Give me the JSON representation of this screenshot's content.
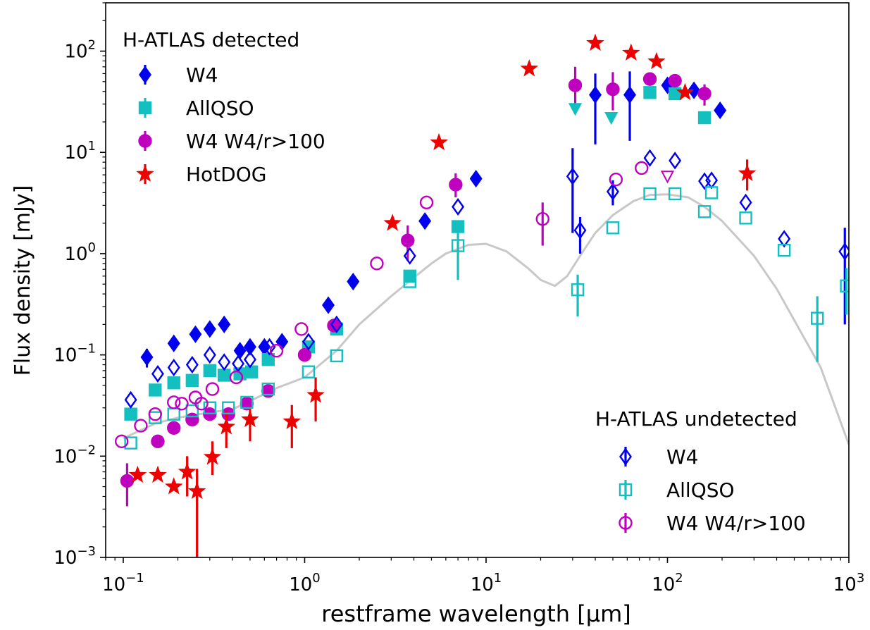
{
  "chart_data": {
    "type": "scatter",
    "xlabel": "restframe wavelength [μm]",
    "ylabel": "Flux density [mJy]",
    "xscale": "log",
    "yscale": "log",
    "xlim": [
      0.08,
      1000
    ],
    "ylim": [
      0.001,
      300
    ],
    "x_ticks": [
      {
        "value": 0.1,
        "base": "10",
        "exp": "−1"
      },
      {
        "value": 1,
        "base": "10",
        "exp": "0"
      },
      {
        "value": 10,
        "base": "10",
        "exp": "1"
      },
      {
        "value": 100,
        "base": "10",
        "exp": "2"
      },
      {
        "value": 1000,
        "base": "10",
        "exp": "3"
      }
    ],
    "y_ticks": [
      {
        "value": 0.001,
        "base": "10",
        "exp": "−3"
      },
      {
        "value": 0.01,
        "base": "10",
        "exp": "−2"
      },
      {
        "value": 0.1,
        "base": "10",
        "exp": "−1"
      },
      {
        "value": 1,
        "base": "10",
        "exp": "0"
      },
      {
        "value": 10,
        "base": "10",
        "exp": "1"
      },
      {
        "value": 100,
        "base": "10",
        "exp": "2"
      }
    ],
    "grid": false,
    "legends": [
      {
        "title": "H-ATLAS detected",
        "placement": "top-left",
        "entries": [
          {
            "label": "W4",
            "marker": "diamond",
            "color": "#0000ee",
            "filled": true
          },
          {
            "label": "AllQSO",
            "marker": "square",
            "color": "#14bfbf",
            "filled": true
          },
          {
            "label": "W4 W4/r>100",
            "marker": "circle",
            "color": "#bf00bf",
            "filled": true
          },
          {
            "label": "HotDOG",
            "marker": "star",
            "color": "#ee0000",
            "filled": true
          }
        ]
      },
      {
        "title": "H-ATLAS undetected",
        "placement": "bottom-right",
        "entries": [
          {
            "label": "W4",
            "marker": "diamond",
            "color": "#0000ee",
            "filled": false
          },
          {
            "label": "AllQSO",
            "marker": "square",
            "color": "#14bfbf",
            "filled": false
          },
          {
            "label": "W4 W4/r>100",
            "marker": "circle",
            "color": "#bf00bf",
            "filled": false
          }
        ]
      }
    ],
    "template_curve": {
      "color": "#c8c8c8",
      "points": [
        [
          0.1,
          0.015
        ],
        [
          0.15,
          0.021
        ],
        [
          0.2,
          0.024
        ],
        [
          0.3,
          0.027
        ],
        [
          0.4,
          0.029
        ],
        [
          0.5,
          0.035
        ],
        [
          0.7,
          0.047
        ],
        [
          1.0,
          0.06
        ],
        [
          1.5,
          0.11
        ],
        [
          2,
          0.2
        ],
        [
          3,
          0.38
        ],
        [
          4,
          0.58
        ],
        [
          5,
          0.8
        ],
        [
          6,
          1.0
        ],
        [
          8,
          1.22
        ],
        [
          10,
          1.25
        ],
        [
          13,
          1.05
        ],
        [
          17,
          0.72
        ],
        [
          20,
          0.55
        ],
        [
          24,
          0.48
        ],
        [
          28,
          0.6
        ],
        [
          33,
          0.95
        ],
        [
          40,
          1.6
        ],
        [
          50,
          2.4
        ],
        [
          65,
          3.3
        ],
        [
          80,
          3.8
        ],
        [
          100,
          3.85
        ],
        [
          130,
          3.6
        ],
        [
          160,
          2.9
        ],
        [
          200,
          2.1
        ],
        [
          300,
          0.95
        ],
        [
          400,
          0.45
        ],
        [
          500,
          0.22
        ],
        [
          700,
          0.075
        ],
        [
          1000,
          0.013
        ]
      ]
    },
    "series": [
      {
        "name": "W4",
        "group": "H-ATLAS detected",
        "marker": "diamond",
        "color": "#0000ee",
        "filled": true,
        "points": [
          {
            "x": 0.135,
            "y": 0.095,
            "err": [
              0.075,
              0.115
            ]
          },
          {
            "x": 0.19,
            "y": 0.13
          },
          {
            "x": 0.25,
            "y": 0.16
          },
          {
            "x": 0.3,
            "y": 0.18
          },
          {
            "x": 0.36,
            "y": 0.2
          },
          {
            "x": 0.44,
            "y": 0.11
          },
          {
            "x": 0.5,
            "y": 0.12
          },
          {
            "x": 0.6,
            "y": 0.12
          },
          {
            "x": 0.75,
            "y": 0.135
          },
          {
            "x": 1.35,
            "y": 0.31
          },
          {
            "x": 1.85,
            "y": 0.53
          },
          {
            "x": 4.6,
            "y": 2.1
          },
          {
            "x": 8.8,
            "y": 5.5
          },
          {
            "x": 40,
            "y": 37,
            "err": [
              12,
              60
            ]
          },
          {
            "x": 62,
            "y": 37,
            "err": [
              13,
              63
            ]
          },
          {
            "x": 100,
            "y": 46
          },
          {
            "x": 140,
            "y": 41
          },
          {
            "x": 195,
            "y": 26
          }
        ]
      },
      {
        "name": "AllQSO",
        "group": "H-ATLAS detected",
        "marker": "square",
        "color": "#14bfbf",
        "filled": true,
        "points": [
          {
            "x": 0.11,
            "y": 0.026
          },
          {
            "x": 0.15,
            "y": 0.045
          },
          {
            "x": 0.19,
            "y": 0.053
          },
          {
            "x": 0.24,
            "y": 0.056
          },
          {
            "x": 0.3,
            "y": 0.07
          },
          {
            "x": 0.36,
            "y": 0.063
          },
          {
            "x": 0.44,
            "y": 0.065
          },
          {
            "x": 0.51,
            "y": 0.068
          },
          {
            "x": 0.63,
            "y": 0.09
          },
          {
            "x": 1.05,
            "y": 0.12
          },
          {
            "x": 1.5,
            "y": 0.18
          },
          {
            "x": 3.8,
            "y": 0.6
          },
          {
            "x": 7,
            "y": 1.85
          },
          {
            "x": 80,
            "y": 39
          },
          {
            "x": 110,
            "y": 38
          },
          {
            "x": 160,
            "y": 22
          }
        ]
      },
      {
        "name": "W4 W4/r>100",
        "group": "H-ATLAS detected",
        "marker": "circle",
        "color": "#bf00bf",
        "filled": true,
        "points": [
          {
            "x": 0.105,
            "y": 0.0057,
            "err": [
              0.0032,
              0.0085
            ]
          },
          {
            "x": 0.155,
            "y": 0.014
          },
          {
            "x": 0.19,
            "y": 0.019
          },
          {
            "x": 0.24,
            "y": 0.023
          },
          {
            "x": 0.3,
            "y": 0.026
          },
          {
            "x": 0.38,
            "y": 0.026
          },
          {
            "x": 0.48,
            "y": 0.033
          },
          {
            "x": 0.63,
            "y": 0.044
          },
          {
            "x": 1.0,
            "y": 0.1
          },
          {
            "x": 1.45,
            "y": 0.195
          },
          {
            "x": 3.7,
            "y": 1.35,
            "err": [
              0.85,
              1.9
            ]
          },
          {
            "x": 6.8,
            "y": 4.8,
            "err": [
              3.6,
              6.2
            ]
          },
          {
            "x": 31,
            "y": 46,
            "err": [
              26,
              70
            ]
          },
          {
            "x": 50,
            "y": 42,
            "err": [
              26,
              62
            ]
          },
          {
            "x": 80,
            "y": 53
          },
          {
            "x": 110,
            "y": 51
          },
          {
            "x": 160,
            "y": 38,
            "err": [
              29,
              47
            ]
          }
        ]
      },
      {
        "name": "HotDOG",
        "group": "H-ATLAS detected",
        "marker": "star",
        "color": "#ee0000",
        "filled": true,
        "points": [
          {
            "x": 0.12,
            "y": 0.0065
          },
          {
            "x": 0.155,
            "y": 0.0065
          },
          {
            "x": 0.19,
            "y": 0.005
          },
          {
            "x": 0.225,
            "y": 0.007,
            "err": [
              0.004,
              0.01
            ]
          },
          {
            "x": 0.255,
            "y": 0.0045,
            "err": [
              0.001,
              0.0075
            ]
          },
          {
            "x": 0.31,
            "y": 0.0098,
            "err": [
              0.0065,
              0.014
            ]
          },
          {
            "x": 0.37,
            "y": 0.0195,
            "err": [
              0.012,
              0.028
            ]
          },
          {
            "x": 0.5,
            "y": 0.023,
            "err": [
              0.014,
              0.031
            ]
          },
          {
            "x": 0.85,
            "y": 0.022,
            "err": [
              0.012,
              0.032
            ]
          },
          {
            "x": 1.15,
            "y": 0.04,
            "err": [
              0.022,
              0.06
            ]
          },
          {
            "x": 3.05,
            "y": 2.0
          },
          {
            "x": 5.5,
            "y": 12.5
          },
          {
            "x": 17.3,
            "y": 67
          },
          {
            "x": 40,
            "y": 120
          },
          {
            "x": 63,
            "y": 96
          },
          {
            "x": 87,
            "y": 79
          },
          {
            "x": 125,
            "y": 39
          },
          {
            "x": 275,
            "y": 6.2,
            "err": [
              4.2,
              8.5
            ]
          }
        ]
      },
      {
        "name": "W4",
        "group": "H-ATLAS undetected",
        "marker": "diamond",
        "color": "#0000ee",
        "filled": false,
        "points": [
          {
            "x": 0.11,
            "y": 0.036
          },
          {
            "x": 0.155,
            "y": 0.065
          },
          {
            "x": 0.19,
            "y": 0.075
          },
          {
            "x": 0.24,
            "y": 0.08
          },
          {
            "x": 0.3,
            "y": 0.1
          },
          {
            "x": 0.36,
            "y": 0.085
          },
          {
            "x": 0.43,
            "y": 0.082
          },
          {
            "x": 0.5,
            "y": 0.09
          },
          {
            "x": 0.64,
            "y": 0.12
          },
          {
            "x": 1.05,
            "y": 0.135
          },
          {
            "x": 1.5,
            "y": 0.2
          },
          {
            "x": 3.8,
            "y": 0.95
          },
          {
            "x": 7,
            "y": 2.9
          },
          {
            "x": 30,
            "y": 5.8,
            "err": [
              1.6,
              11
            ]
          },
          {
            "x": 33,
            "y": 1.7,
            "err": [
              1.0,
              2.3
            ]
          },
          {
            "x": 50,
            "y": 4.1,
            "err": [
              3.0,
              5.3
            ]
          },
          {
            "x": 80,
            "y": 8.8
          },
          {
            "x": 110,
            "y": 8.3
          },
          {
            "x": 160,
            "y": 5.2
          },
          {
            "x": 175,
            "y": 5.3
          },
          {
            "x": 270,
            "y": 3.2
          },
          {
            "x": 440,
            "y": 1.4
          },
          {
            "x": 950,
            "y": 1.05,
            "err": [
              0.2,
              1.8
            ]
          }
        ]
      },
      {
        "name": "AllQSO",
        "group": "H-ATLAS undetected",
        "marker": "square",
        "color": "#14bfbf",
        "filled": false,
        "points": [
          {
            "x": 0.11,
            "y": 0.0135
          },
          {
            "x": 0.15,
            "y": 0.024
          },
          {
            "x": 0.19,
            "y": 0.026
          },
          {
            "x": 0.24,
            "y": 0.028
          },
          {
            "x": 0.3,
            "y": 0.03
          },
          {
            "x": 0.38,
            "y": 0.03
          },
          {
            "x": 0.48,
            "y": 0.034
          },
          {
            "x": 0.63,
            "y": 0.046
          },
          {
            "x": 1.05,
            "y": 0.068
          },
          {
            "x": 1.5,
            "y": 0.098
          },
          {
            "x": 3.8,
            "y": 0.53
          },
          {
            "x": 7,
            "y": 1.2,
            "err": [
              0.55,
              1.7
            ]
          },
          {
            "x": 32,
            "y": 0.44,
            "err": [
              0.24,
              0.62
            ]
          },
          {
            "x": 50,
            "y": 1.8
          },
          {
            "x": 80,
            "y": 3.9
          },
          {
            "x": 110,
            "y": 3.9
          },
          {
            "x": 160,
            "y": 2.6
          },
          {
            "x": 175,
            "y": 4.0
          },
          {
            "x": 270,
            "y": 2.25
          },
          {
            "x": 440,
            "y": 1.08
          },
          {
            "x": 670,
            "y": 0.23,
            "err": [
              0.085,
              0.38
            ]
          },
          {
            "x": 970,
            "y": 0.48,
            "err": [
              0.25,
              0.72
            ]
          }
        ]
      },
      {
        "name": "W4 W4/r>100",
        "group": "H-ATLAS undetected",
        "marker": "circle",
        "color": "#bf00bf",
        "filled": false,
        "points": [
          {
            "x": 0.098,
            "y": 0.014
          },
          {
            "x": 0.125,
            "y": 0.02
          },
          {
            "x": 0.15,
            "y": 0.026
          },
          {
            "x": 0.19,
            "y": 0.034
          },
          {
            "x": 0.21,
            "y": 0.033
          },
          {
            "x": 0.25,
            "y": 0.038
          },
          {
            "x": 0.27,
            "y": 0.033
          },
          {
            "x": 0.31,
            "y": 0.046
          },
          {
            "x": 0.42,
            "y": 0.06
          },
          {
            "x": 0.7,
            "y": 0.11
          },
          {
            "x": 0.96,
            "y": 0.18
          },
          {
            "x": 2.5,
            "y": 0.8
          },
          {
            "x": 4.7,
            "y": 3.2
          },
          {
            "x": 20.5,
            "y": 2.2,
            "err": [
              1.2,
              3.2
            ]
          },
          {
            "x": 52,
            "y": 5.4
          },
          {
            "x": 72,
            "y": 7.0
          }
        ]
      },
      {
        "name": "upper limits",
        "group": "H-ATLAS detected",
        "marker": "triangle-down",
        "color": "#14bfbf",
        "filled": true,
        "points": [
          {
            "x": 31,
            "y": 27
          },
          {
            "x": 49,
            "y": 22
          }
        ]
      },
      {
        "name": "upper limits",
        "group": "H-ATLAS undetected",
        "marker": "triangle-down",
        "color": "#bf00bf",
        "filled": false,
        "points": [
          {
            "x": 100,
            "y": 5.8
          }
        ]
      }
    ]
  }
}
